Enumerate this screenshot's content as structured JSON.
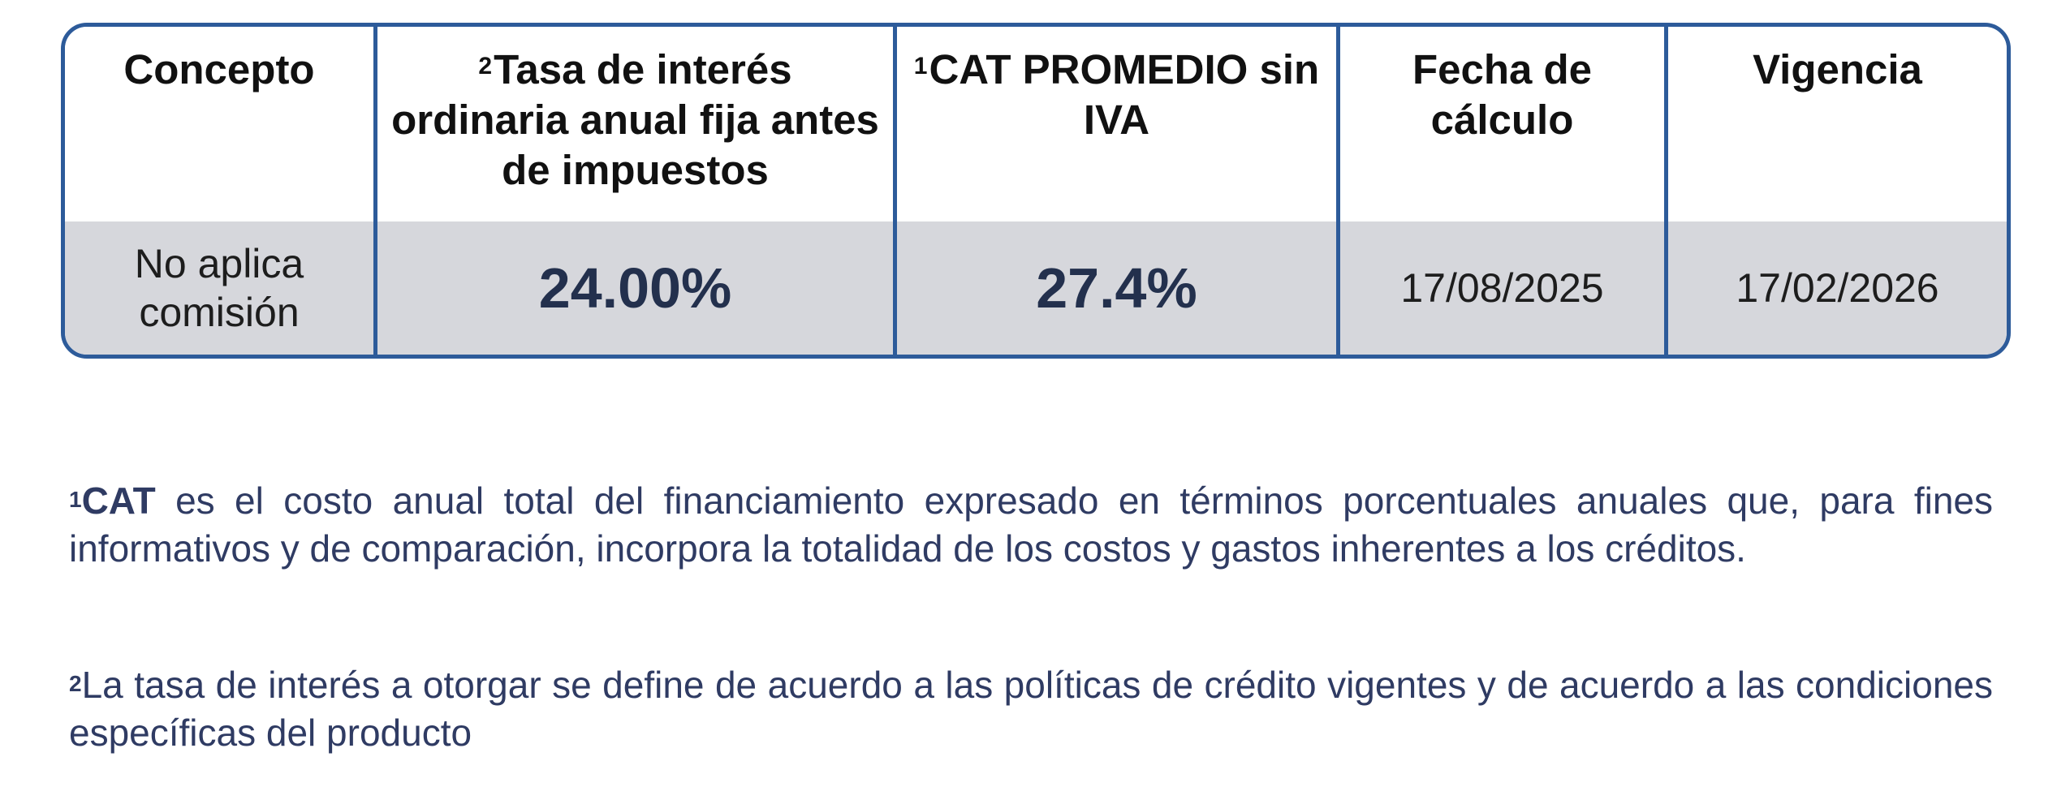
{
  "table": {
    "headers": [
      {
        "sup": "",
        "label": "Concepto"
      },
      {
        "sup": "2",
        "label": "Tasa de interés ordinaria anual fija antes de impuestos"
      },
      {
        "sup": "1",
        "label": "CAT PROMEDIO sin IVA"
      },
      {
        "sup": "",
        "label": "Fecha de cálculo"
      },
      {
        "sup": "",
        "label": "Vigencia"
      }
    ],
    "row": {
      "concepto": "No aplica comisión",
      "tasa": "24.00%",
      "cat": "27.4%",
      "fecha_calculo": "17/08/2025",
      "vigencia": "17/02/2026"
    }
  },
  "notes": {
    "note1": {
      "sup": "1",
      "lead": "CAT",
      "text": " es el costo anual total del financiamiento expresado en términos porcentuales anuales que, para fines informativos y de comparación, incorpora la totalidad de los costos y gastos inherentes a los créditos."
    },
    "note2": {
      "sup": "2",
      "text": "La tasa de interés a otorgar se define de acuerdo a las políticas de crédito vigentes y de acuerdo a las condiciones específicas del producto"
    }
  },
  "colors": {
    "border": "#2d5b9a",
    "row_background": "#d6d7dc",
    "value_text": "#23304d",
    "note_text": "#2f3b63"
  }
}
